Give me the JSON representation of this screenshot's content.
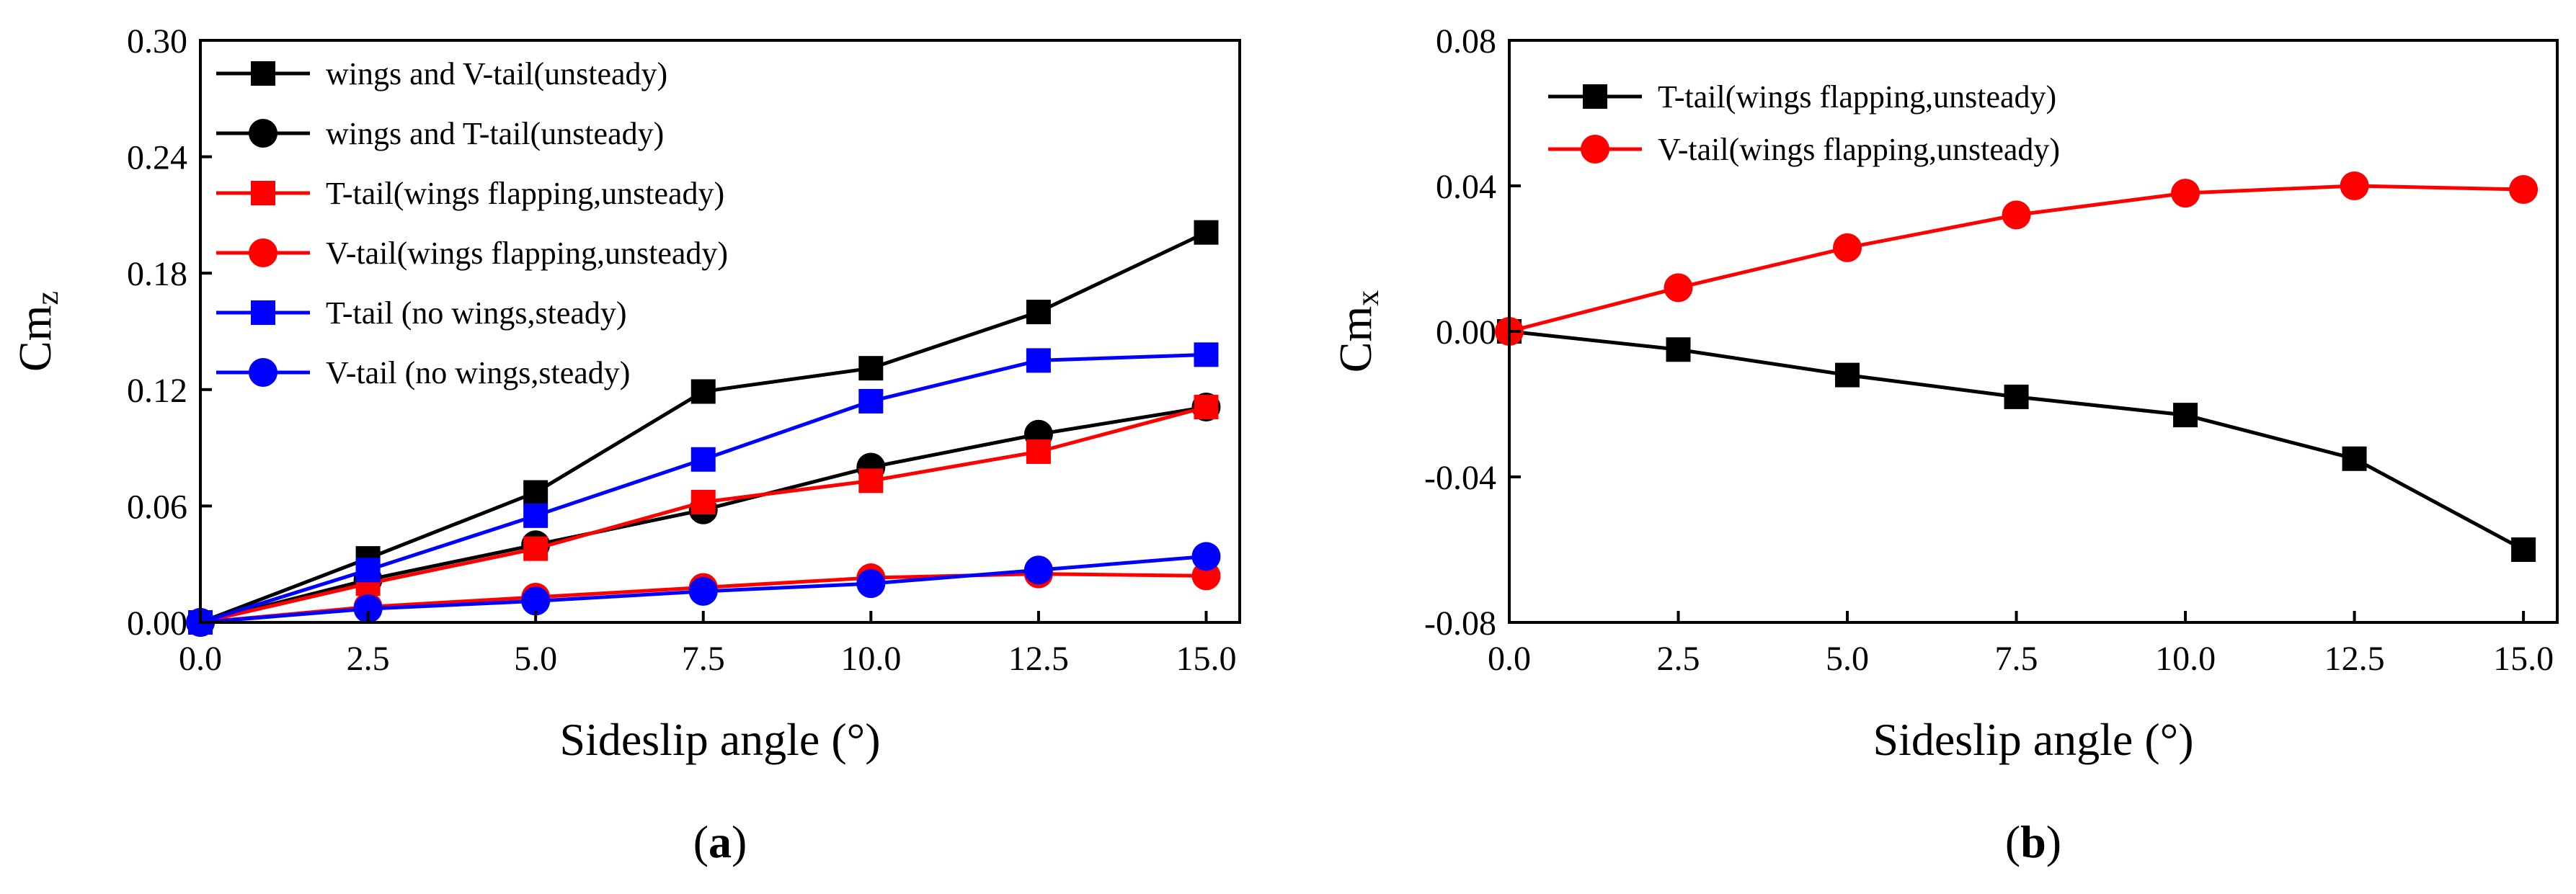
{
  "colors": {
    "black": "#000000",
    "red": "#ff0000",
    "blue": "#0000ff"
  },
  "chart_data": [
    {
      "id": "a",
      "type": "line",
      "caption": {
        "open": "(",
        "letter": "a",
        "close": ")"
      },
      "xlabel": "Sideslip angle (°)",
      "ylabel": {
        "main": "Cm",
        "sub": "z"
      },
      "xlim": [
        0,
        15.5
      ],
      "ylim": [
        0,
        0.3
      ],
      "xticks": [
        "0.0",
        "2.5",
        "5.0",
        "7.5",
        "10.0",
        "12.5",
        "15.0"
      ],
      "xtick_values": [
        0,
        2.5,
        5,
        7.5,
        10,
        12.5,
        15
      ],
      "yticks": [
        "0.00",
        "0.06",
        "0.12",
        "0.18",
        "0.24",
        "0.30"
      ],
      "ytick_values": [
        0,
        0.06,
        0.12,
        0.18,
        0.24,
        0.3
      ],
      "legend_position": "top-left",
      "x": [
        0,
        2.5,
        5,
        7.5,
        10,
        12.5,
        15
      ],
      "series": [
        {
          "name": "wings and V-tail(unsteady)",
          "color": "#000000",
          "marker": "square",
          "values": [
            0,
            0.033,
            0.067,
            0.119,
            0.131,
            0.16,
            0.201
          ]
        },
        {
          "name": "wings and T-tail(unsteady)",
          "color": "#000000",
          "marker": "circle",
          "values": [
            0,
            0.022,
            0.04,
            0.058,
            0.08,
            0.097,
            0.111
          ]
        },
        {
          "name": "T-tail(wings flapping,unsteady)",
          "color": "#ff0000",
          "marker": "square",
          "values": [
            0,
            0.02,
            0.038,
            0.062,
            0.073,
            0.088,
            0.111
          ]
        },
        {
          "name": "V-tail(wings flapping,unsteady)",
          "color": "#ff0000",
          "marker": "circle",
          "values": [
            0,
            0.008,
            0.013,
            0.018,
            0.023,
            0.025,
            0.024
          ]
        },
        {
          "name": "T-tail (no wings,steady)",
          "color": "#0000ff",
          "marker": "square",
          "values": [
            0,
            0.027,
            0.055,
            0.084,
            0.114,
            0.135,
            0.138
          ]
        },
        {
          "name": "V-tail (no wings,steady)",
          "color": "#0000ff",
          "marker": "circle",
          "values": [
            0,
            0.007,
            0.011,
            0.016,
            0.02,
            0.027,
            0.034
          ]
        }
      ]
    },
    {
      "id": "b",
      "type": "line",
      "caption": {
        "open": "(",
        "letter": "b",
        "close": ")"
      },
      "xlabel": "Sideslip angle (°)",
      "ylabel": {
        "main": "Cm",
        "sub": "x"
      },
      "xlim": [
        0,
        15.5
      ],
      "ylim": [
        -0.08,
        0.08
      ],
      "xticks": [
        "0.0",
        "2.5",
        "5.0",
        "7.5",
        "10.0",
        "12.5",
        "15.0"
      ],
      "xtick_values": [
        0,
        2.5,
        5,
        7.5,
        10,
        12.5,
        15
      ],
      "yticks": [
        "-0.08",
        "-0.04",
        "0.00",
        "0.04",
        "0.08"
      ],
      "ytick_values": [
        -0.08,
        -0.04,
        0,
        0.04,
        0.08
      ],
      "legend_position": "top-left",
      "x": [
        0,
        2.5,
        5,
        7.5,
        10,
        12.5,
        15
      ],
      "series": [
        {
          "name": "T-tail(wings flapping,unsteady)",
          "color": "#000000",
          "marker": "square",
          "values": [
            0,
            -0.005,
            -0.012,
            -0.018,
            -0.023,
            -0.035,
            -0.06
          ]
        },
        {
          "name": "V-tail(wings flapping,unsteady)",
          "color": "#ff0000",
          "marker": "circle",
          "values": [
            0,
            0.012,
            0.023,
            0.032,
            0.038,
            0.04,
            0.039
          ]
        }
      ]
    }
  ]
}
